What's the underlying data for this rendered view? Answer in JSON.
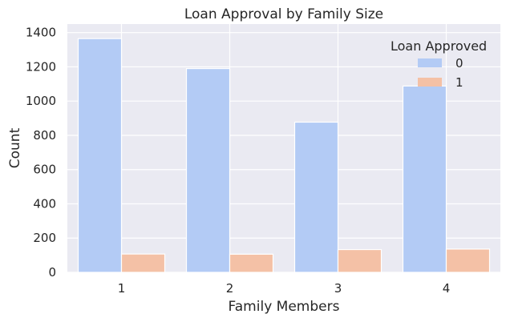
{
  "chart_data": {
    "type": "bar",
    "title": "Loan Approval by Family Size",
    "xlabel": "Family Members",
    "ylabel": "Count",
    "categories": [
      "1",
      "2",
      "3",
      "4"
    ],
    "ylim": [
      0,
      1450
    ],
    "yticks": [
      0,
      200,
      400,
      600,
      800,
      1000,
      1200,
      1400
    ],
    "grid": true,
    "legend": {
      "title": "Loan Approved",
      "placement": "top-right"
    },
    "series": [
      {
        "name": "0",
        "color": "#b3cbf5",
        "values": [
          1365,
          1190,
          877,
          1088
        ]
      },
      {
        "name": "1",
        "color": "#f4c1a6",
        "values": [
          107,
          106,
          133,
          136
        ]
      }
    ]
  }
}
